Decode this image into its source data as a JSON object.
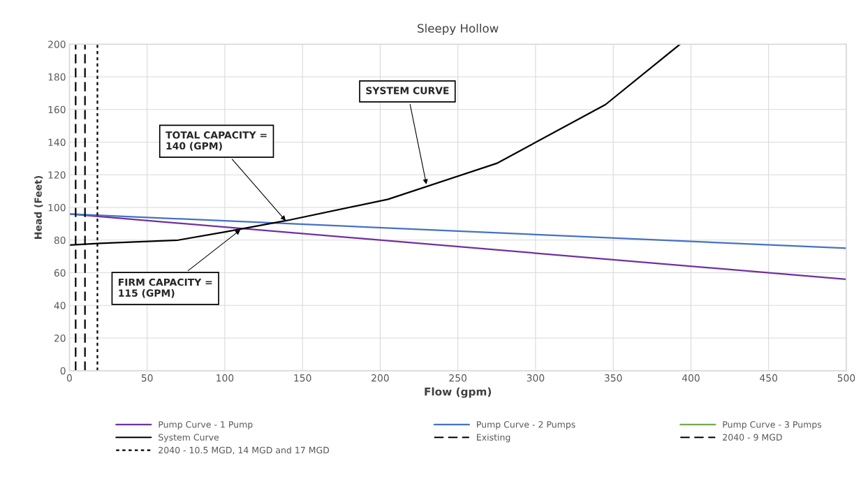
{
  "chart_data": {
    "type": "line",
    "title": "Sleepy Hollow",
    "xlabel": "Flow (gpm)",
    "ylabel": "Head (Feet)",
    "xlim": [
      0,
      500
    ],
    "xticks": [
      0,
      50,
      100,
      150,
      200,
      250,
      300,
      350,
      400,
      450,
      500
    ],
    "ylim": [
      0,
      200
    ],
    "yticks": [
      0,
      20,
      40,
      60,
      80,
      100,
      120,
      140,
      160,
      180,
      200
    ],
    "grid": true,
    "legend": "bottom",
    "marker": "none",
    "series": [
      {
        "name": "Pump Curve - 1 Pump",
        "color": "#7030a0",
        "x": [
          0,
          500
        ],
        "values": [
          96,
          56
        ],
        "line_style": "solid"
      },
      {
        "name": "Pump Curve - 2 Pumps",
        "color": "#4472c4",
        "x": [
          0,
          500
        ],
        "values": [
          96,
          75
        ],
        "line_style": "solid"
      },
      {
        "name": "Pump Curve - 3 Pumps",
        "color": "#70ad47",
        "line_style": "solid"
      },
      {
        "name": "System Curve",
        "color": "#000000",
        "x": [
          0,
          20,
          70,
          100,
          140,
          205,
          275,
          345,
          393
        ],
        "values": [
          77,
          78,
          80,
          85,
          92,
          105,
          127,
          163,
          200
        ],
        "line_style": "solid"
      },
      {
        "name": "Existing",
        "color": "#000000",
        "x": [
          4,
          4
        ],
        "values": [
          0,
          200
        ],
        "line_style": "dashed"
      },
      {
        "name": "2040 - 9 MGD",
        "color": "#000000",
        "x": [
          10,
          10
        ],
        "values": [
          0,
          200
        ],
        "line_style": "dashed"
      },
      {
        "name": "2040 - 10.5 MGD, 14 MGD and 17 MGD",
        "color": "#000000",
        "x": [
          18,
          18
        ],
        "values": [
          0,
          200
        ],
        "line_style": "dotted"
      }
    ],
    "annotations": [
      {
        "text": "TOTAL CAPACITY =\n140 (GPM)",
        "x": 140,
        "y": 91
      },
      {
        "text": "FIRM CAPACITY =\n115 (GPM)",
        "x": 111,
        "y": 87
      },
      {
        "text": "SYSTEM CURVE",
        "x": 230,
        "y": 113
      }
    ]
  }
}
